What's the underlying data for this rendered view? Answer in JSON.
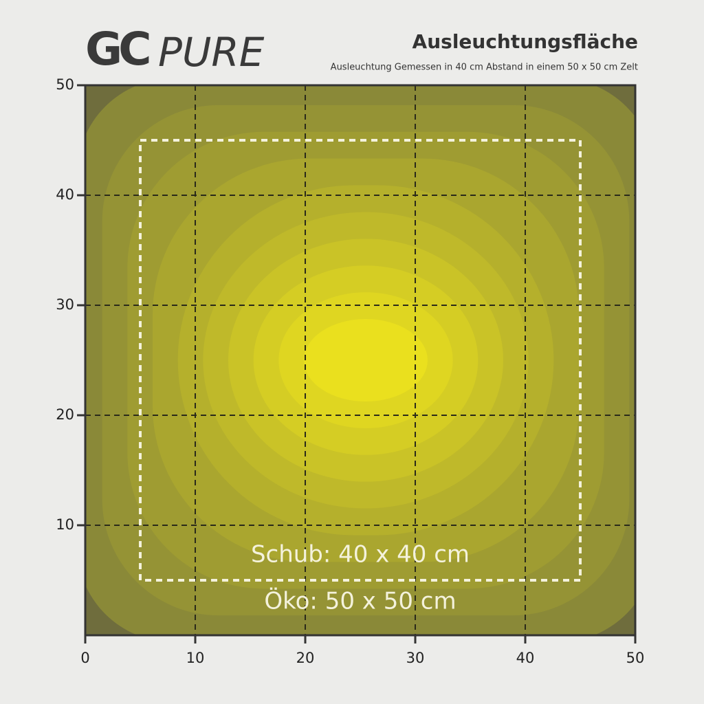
{
  "logo": {
    "mark": "GC",
    "name": "PURE"
  },
  "chart_data": {
    "type": "contour",
    "title": "Ausleuchtungsfläche",
    "subtitle": "Ausleuchtung Gemessen in 40 cm Abstand in einem 50 x 50 cm Zelt",
    "xlim": [
      0,
      50
    ],
    "ylim": [
      0,
      50
    ],
    "xticks": [
      0,
      10,
      20,
      30,
      40,
      50
    ],
    "yticks": [
      10,
      20,
      30,
      40,
      50
    ],
    "grid": true,
    "peak": {
      "x": 25.5,
      "y": 25
    },
    "regions": [
      {
        "label": "Schub: 40 x 40 cm",
        "x": [
          5,
          45
        ],
        "y": [
          5,
          45
        ],
        "style": "dashed"
      },
      {
        "label": "Öko: 50 x 50 cm",
        "x": [
          0,
          50
        ],
        "y": [
          0,
          50
        ],
        "style": "frame"
      }
    ]
  }
}
